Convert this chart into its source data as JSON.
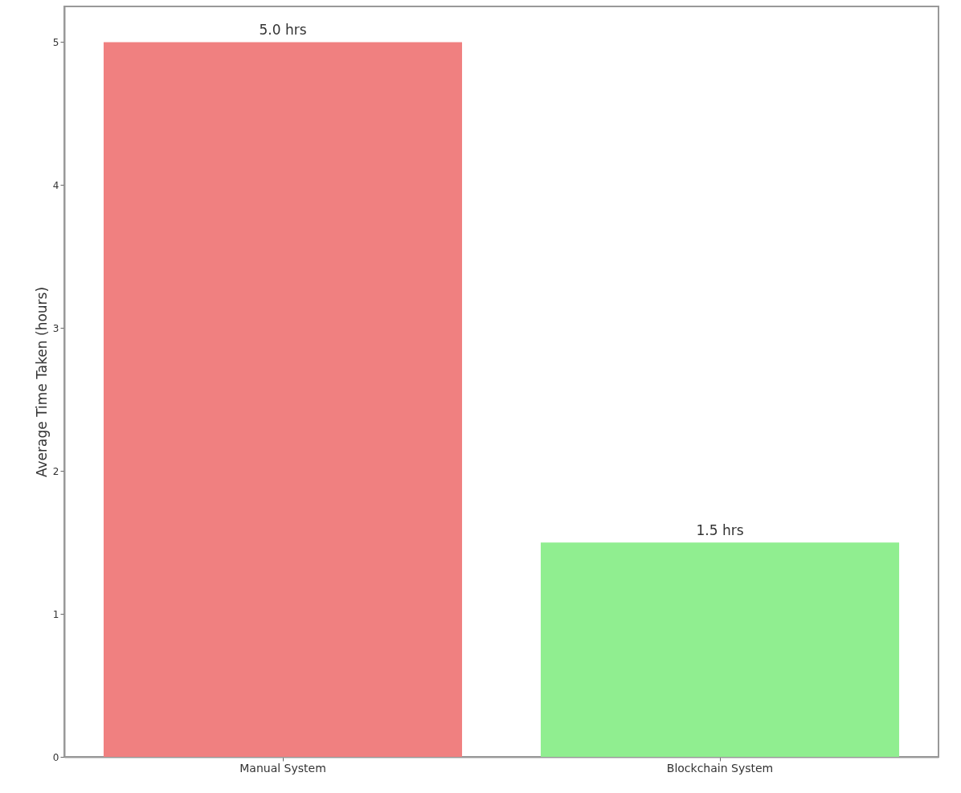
{
  "chart_data": {
    "type": "bar",
    "ylabel": "Average Time Taken (hours)",
    "categories": [
      "Manual System",
      "Blockchain System"
    ],
    "values": [
      5.0,
      1.5
    ],
    "colors": [
      "#f08080",
      "#90ee90"
    ],
    "value_labels": [
      "5.0 hrs",
      "1.5 hrs"
    ],
    "ylim": [
      0,
      5.25
    ],
    "yticks": [
      0,
      1,
      2,
      3,
      4,
      5
    ],
    "grid": false
  }
}
